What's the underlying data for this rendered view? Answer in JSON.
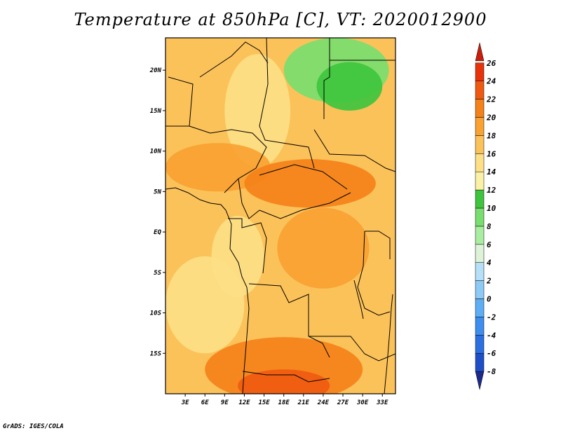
{
  "title": "Temperature at 850hPa [C], VT: 2020012900",
  "credit": "GrADS: IGES/COLA",
  "map": {
    "lon_range": [
      0,
      35
    ],
    "lat_range": [
      -20,
      24
    ],
    "lat_ticks": [
      {
        "value": 20,
        "label": "20N"
      },
      {
        "value": 15,
        "label": "15N"
      },
      {
        "value": 10,
        "label": "10N"
      },
      {
        "value": 5,
        "label": "5N"
      },
      {
        "value": 0,
        "label": "EQ"
      },
      {
        "value": -5,
        "label": "5S"
      },
      {
        "value": -10,
        "label": "10S"
      },
      {
        "value": -15,
        "label": "15S"
      }
    ],
    "lon_ticks": [
      {
        "value": 3,
        "label": "3E"
      },
      {
        "value": 6,
        "label": "6E"
      },
      {
        "value": 9,
        "label": "9E"
      },
      {
        "value": 12,
        "label": "12E"
      },
      {
        "value": 15,
        "label": "15E"
      },
      {
        "value": 18,
        "label": "18E"
      },
      {
        "value": 21,
        "label": "21E"
      },
      {
        "value": 24,
        "label": "24E"
      },
      {
        "value": 27,
        "label": "27E"
      },
      {
        "value": 30,
        "label": "30E"
      },
      {
        "value": 33,
        "label": "33E"
      }
    ]
  },
  "colorbar": {
    "colors": [
      "#1c2a8c",
      "#1f4fc8",
      "#2b6fe0",
      "#3c8ef0",
      "#5eaef5",
      "#8dcbf7",
      "#b6e0f7",
      "#dcf3d8",
      "#a8eda0",
      "#78de6e",
      "#3fc43e",
      "#fbf1a6",
      "#fddf86",
      "#fcc25a",
      "#f9a232",
      "#f48219",
      "#ef5a10",
      "#e8320c",
      "#c81e0a"
    ],
    "labels": [
      "-8",
      "-6",
      "-4",
      "-2",
      "0",
      "2",
      "4",
      "6",
      "8",
      "10",
      "12",
      "14",
      "16",
      "18",
      "20",
      "22",
      "24",
      "26"
    ]
  },
  "field": {
    "background_level": 18,
    "regions": [
      {
        "name": "sahara-nw",
        "level": 17,
        "cx": 5,
        "cy": 18,
        "rx": 7,
        "ry": 6
      },
      {
        "name": "central-sahel",
        "level": 15,
        "cx": 14,
        "cy": 15,
        "rx": 5,
        "ry": 7
      },
      {
        "name": "libya-desert-green",
        "level": 10,
        "cx": 26,
        "cy": 20,
        "rx": 8,
        "ry": 4
      },
      {
        "name": "egypt-green-dark",
        "level": 11,
        "cx": 28,
        "cy": 18,
        "rx": 5,
        "ry": 3
      },
      {
        "name": "sahel-warm",
        "level": 20,
        "cx": 8,
        "cy": 8,
        "rx": 8,
        "ry": 3
      },
      {
        "name": "car-hot",
        "level": 22,
        "cx": 22,
        "cy": 6,
        "rx": 10,
        "ry": 3
      },
      {
        "name": "congo-warm",
        "level": 20,
        "cx": 24,
        "cy": -2,
        "rx": 7,
        "ry": 5
      },
      {
        "name": "gabon-cool",
        "level": 16,
        "cx": 11,
        "cy": -3,
        "rx": 4,
        "ry": 5
      },
      {
        "name": "atlantic-cool",
        "level": 16,
        "cx": 6,
        "cy": -9,
        "rx": 6,
        "ry": 6
      },
      {
        "name": "angola-cool",
        "level": 17,
        "cx": 16,
        "cy": -11,
        "rx": 4,
        "ry": 4
      },
      {
        "name": "south-hot",
        "level": 22,
        "cx": 18,
        "cy": -17,
        "rx": 12,
        "ry": 4
      },
      {
        "name": "south-hotter",
        "level": 23,
        "cx": 18,
        "cy": -19,
        "rx": 7,
        "ry": 2
      }
    ]
  }
}
